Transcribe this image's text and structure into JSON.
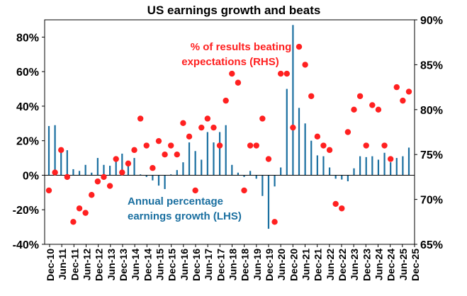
{
  "chart_data": {
    "type": "bar+scatter",
    "title": "US earnings growth and beats",
    "x_tick_labels": [
      "Dec-10",
      "Jun-11",
      "Dec-11",
      "Jun-12",
      "Dec-12",
      "Jun-13",
      "Dec-13",
      "Jun-14",
      "Dec-14",
      "Jun-15",
      "Dec-15",
      "Jun-16",
      "Dec-16",
      "Jun-17",
      "Dec-17",
      "Jun-18",
      "Dec-18",
      "Jun-19",
      "Dec-19",
      "Jun-20",
      "Dec-20",
      "Jun-21",
      "Dec-21",
      "Jun-22",
      "Dec-22",
      "Jun-23",
      "Dec-23",
      "Jun-24",
      "Dec-24",
      "Jun-25",
      "Dec-25"
    ],
    "left_axis": {
      "ticks": [
        "80%",
        "60%",
        "40%",
        "20%",
        "0%",
        "-20%",
        "-40%"
      ],
      "tick_values": [
        80,
        60,
        40,
        20,
        0,
        -20,
        -40
      ],
      "ylim": [
        -40,
        90
      ],
      "unit": "%"
    },
    "right_axis": {
      "ticks": [
        "90%",
        "85%",
        "80%",
        "75%",
        "70%",
        "65%"
      ],
      "tick_values": [
        90,
        85,
        80,
        75,
        70,
        65
      ],
      "ylim": [
        65,
        90
      ],
      "unit": "%"
    },
    "series": [
      {
        "name": "Annual percentage earnings growth (LHS)",
        "label_lines": [
          "Annual percentage",
          "earnings growth (LHS)"
        ],
        "kind": "bar",
        "axis": "left",
        "color": "#1a6fa0",
        "values": [
          28.5,
          29,
          16,
          14.5,
          3.5,
          2.5,
          6,
          1.5,
          10,
          6,
          5.5,
          8,
          12.5,
          6,
          10,
          0.5,
          -1,
          -3,
          -6,
          -8,
          0.5,
          3,
          7.5,
          19,
          14,
          9,
          25,
          19,
          25,
          29,
          6,
          1.5,
          -1,
          2.5,
          -2,
          -12,
          -31,
          -6.5,
          4.5,
          50,
          87,
          39,
          30,
          20,
          11.5,
          11,
          4.5,
          -2,
          -2.5,
          -3.5,
          4,
          11,
          10.5,
          11,
          9,
          13,
          7.5,
          10,
          11,
          16
        ]
      },
      {
        "name": "% of results beating expectations (RHS)",
        "label_lines": [
          "% of results beating",
          "expectations (RHS)"
        ],
        "kind": "scatter",
        "axis": "right",
        "color": "#ff2020",
        "values": [
          71.0,
          73.0,
          75.5,
          72.5,
          67.5,
          69.0,
          68.5,
          70.5,
          72.0,
          72.5,
          71.5,
          74.5,
          73.0,
          74.0,
          75.5,
          79.0,
          76.0,
          73.5,
          76.5,
          75.0,
          76.0,
          75.0,
          78.5,
          77.0,
          71.0,
          78.0,
          79.0,
          78.0,
          76.0,
          81.0,
          84.0,
          83.0,
          71.0,
          76.0,
          76.0,
          79.0,
          74.5,
          67.5,
          84.0,
          84.0,
          78.0,
          87.0,
          85.0,
          81.5,
          77.0,
          76.0,
          75.5,
          69.5,
          69.0,
          77.5,
          80.0,
          81.5,
          76.0,
          80.5,
          80.0,
          76.0,
          74.5,
          82.5,
          81.0,
          82.0
        ]
      }
    ]
  }
}
